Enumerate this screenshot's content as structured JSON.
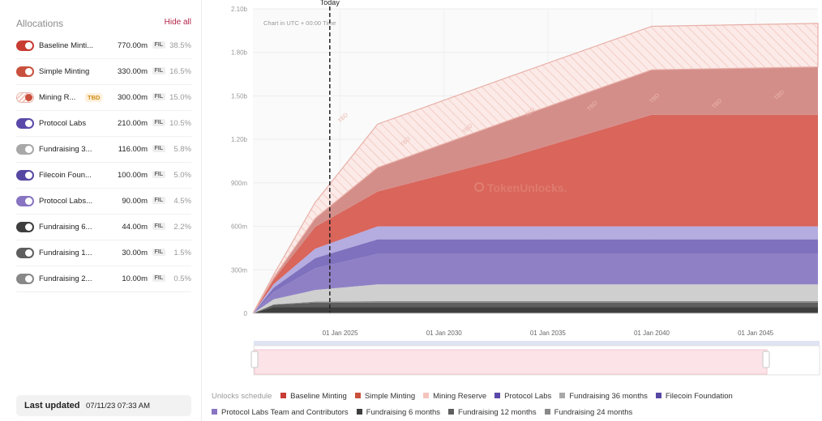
{
  "sidebar": {
    "title": "Allocations",
    "hide_all": "Hide all",
    "unit_badge": "FIL",
    "tbd_badge": "TBD",
    "items": [
      {
        "name": "Baseline Minti...",
        "amount": "770.00m",
        "percent": "38.5%",
        "color": "#c83c33",
        "tbd": false
      },
      {
        "name": "Simple Minting",
        "amount": "330.00m",
        "percent": "16.5%",
        "color": "#c9503d",
        "tbd": false
      },
      {
        "name": "Mining R...",
        "amount": "300.00m",
        "percent": "15.0%",
        "color": "#e8a89e",
        "tbd": true
      },
      {
        "name": "Protocol Labs",
        "amount": "210.00m",
        "percent": "10.5%",
        "color": "#5a49a8",
        "tbd": false
      },
      {
        "name": "Fundraising 3...",
        "amount": "116.00m",
        "percent": "5.8%",
        "color": "#a8a8a8",
        "tbd": false
      },
      {
        "name": "Filecoin Foun...",
        "amount": "100.00m",
        "percent": "5.0%",
        "color": "#5647a3",
        "tbd": false
      },
      {
        "name": "Protocol Labs...",
        "amount": "90.00m",
        "percent": "4.5%",
        "color": "#8874c2",
        "tbd": false
      },
      {
        "name": "Fundraising 6...",
        "amount": "44.00m",
        "percent": "2.2%",
        "color": "#3e3e3e",
        "tbd": false
      },
      {
        "name": "Fundraising 1...",
        "amount": "30.00m",
        "percent": "1.5%",
        "color": "#5e5e5e",
        "tbd": false
      },
      {
        "name": "Fundraising 2...",
        "amount": "10.00m",
        "percent": "0.5%",
        "color": "#888888",
        "tbd": false
      }
    ],
    "last_updated_label": "Last updated",
    "last_updated_value": "07/11/23 07:33 AM"
  },
  "chart": {
    "today_label": "Today",
    "timezone_note": "Chart in UTC + 00:00 Time",
    "watermark": "TokenUnlocks.",
    "hatch_label": "TBD"
  },
  "legend": {
    "title": "Unlocks schedule",
    "items": [
      {
        "label": "Baseline Minting",
        "color": "#c83c33"
      },
      {
        "label": "Simple Minting",
        "color": "#c9503d"
      },
      {
        "label": "Mining Reserve",
        "color": "#f4c4bd"
      },
      {
        "label": "Protocol Labs",
        "color": "#5a49a8"
      },
      {
        "label": "Fundraising 36 months",
        "color": "#a8a8a8"
      },
      {
        "label": "Filecoin Foundation",
        "color": "#5647a3"
      },
      {
        "label": "Protocol Labs Team and Contributors",
        "color": "#8874c2"
      },
      {
        "label": "Fundraising 6 months",
        "color": "#3e3e3e"
      },
      {
        "label": "Fundraising 12 months",
        "color": "#5e5e5e"
      },
      {
        "label": "Fundraising 24 months",
        "color": "#888888"
      }
    ]
  },
  "chart_data": {
    "type": "area",
    "stacked": true,
    "title": "",
    "xlabel": "",
    "ylabel": "",
    "ylim": [
      0,
      2100000000
    ],
    "xlim": [
      2020.8,
      2048
    ],
    "today_x": 2024.5,
    "y_ticks": [
      {
        "value": 0,
        "label": "0"
      },
      {
        "value": 300000000,
        "label": "300m"
      },
      {
        "value": 600000000,
        "label": "600m"
      },
      {
        "value": 900000000,
        "label": "900m"
      },
      {
        "value": 1200000000,
        "label": "1.20b"
      },
      {
        "value": 1500000000,
        "label": "1.50b"
      },
      {
        "value": 1800000000,
        "label": "1.80b"
      },
      {
        "value": 2100000000,
        "label": "2.10b"
      }
    ],
    "x_ticks": [
      {
        "value": 2025,
        "label": "01 Jan 2025"
      },
      {
        "value": 2030,
        "label": "01 Jan 2030"
      },
      {
        "value": 2035,
        "label": "01 Jan 2035"
      },
      {
        "value": 2040,
        "label": "01 Jan 2040"
      },
      {
        "value": 2045,
        "label": "01 Jan 2045"
      }
    ],
    "x": [
      2020.8,
      2021.8,
      2023.8,
      2026.8,
      2033,
      2040,
      2048
    ],
    "series": [
      {
        "name": "Fundraising 6 months",
        "color": "#3e3e3e",
        "values": [
          0,
          44000000,
          44000000,
          44000000,
          44000000,
          44000000,
          44000000
        ]
      },
      {
        "name": "Fundraising 12 months",
        "color": "#5e5e5e",
        "values": [
          0,
          15000000,
          30000000,
          30000000,
          30000000,
          30000000,
          30000000
        ]
      },
      {
        "name": "Fundraising 24 months",
        "color": "#888888",
        "values": [
          0,
          3000000,
          7000000,
          10000000,
          10000000,
          10000000,
          10000000
        ]
      },
      {
        "name": "Fundraising 36 months",
        "color": "#cfcfcf",
        "values": [
          0,
          35000000,
          80000000,
          116000000,
          116000000,
          116000000,
          116000000
        ]
      },
      {
        "name": "Protocol Labs",
        "color": "#8f80c6",
        "values": [
          0,
          50000000,
          150000000,
          210000000,
          210000000,
          210000000,
          210000000
        ]
      },
      {
        "name": "Filecoin Foundation",
        "color": "#7f71bd",
        "values": [
          0,
          30000000,
          70000000,
          100000000,
          100000000,
          100000000,
          100000000
        ]
      },
      {
        "name": "Protocol Labs Team and Contributors",
        "color": "#b5ace0",
        "values": [
          0,
          25000000,
          65000000,
          90000000,
          90000000,
          90000000,
          90000000
        ]
      },
      {
        "name": "Baseline Minting",
        "color": "#d9655b",
        "values": [
          0,
          30000000,
          150000000,
          240000000,
          470000000,
          770000000,
          770000000
        ]
      },
      {
        "name": "Simple Minting",
        "color": "#d48e8a",
        "values": [
          0,
          15000000,
          60000000,
          165000000,
          255000000,
          310000000,
          330000000
        ]
      },
      {
        "name": "Mining Reserve",
        "color": "#f6d9d4",
        "hatched": true,
        "values": [
          0,
          20000000,
          110000000,
          300000000,
          300000000,
          300000000,
          300000000
        ]
      }
    ]
  }
}
